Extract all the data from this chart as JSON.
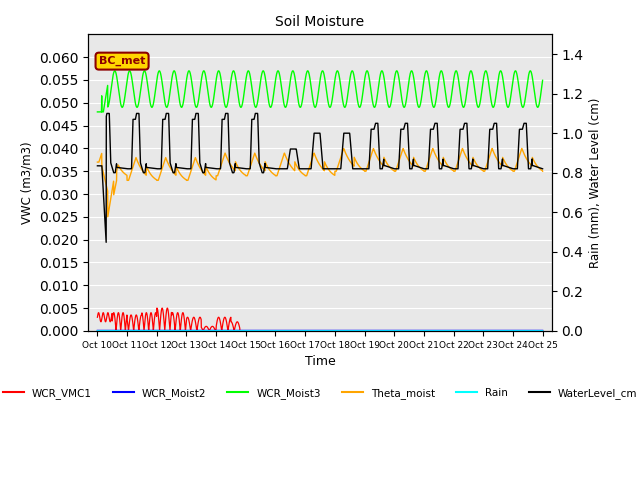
{
  "title": "Soil Moisture",
  "xlabel": "Time",
  "ylabel_left": "VWC (m3/m3)",
  "ylabel_right": "Rain (mm), Water Level (cm)",
  "xlim_start": 9.7,
  "xlim_end": 25.3,
  "ylim_left": [
    0,
    0.065
  ],
  "ylim_right": [
    0.0,
    1.5
  ],
  "yticks_left": [
    0.0,
    0.005,
    0.01,
    0.015,
    0.02,
    0.025,
    0.03,
    0.035,
    0.04,
    0.045,
    0.05,
    0.055,
    0.06
  ],
  "yticks_right": [
    0.0,
    0.2,
    0.4,
    0.6,
    0.8,
    1.0,
    1.2,
    1.4
  ],
  "annotation_text": "BC_met",
  "annotation_box_color": "#FFD700",
  "annotation_text_color": "#8B0000",
  "background_plot": "#E8E8E8",
  "background_upper": "#DCDCDC",
  "legend_colors": {
    "WCR_VMC1": "#FF0000",
    "WCR_Moist2": "#0000FF",
    "WCR_Moist3": "#00FF00",
    "Theta_moist": "#FFA500",
    "Rain": "#00FFFF",
    "WaterLevel_cm": "#000000"
  }
}
